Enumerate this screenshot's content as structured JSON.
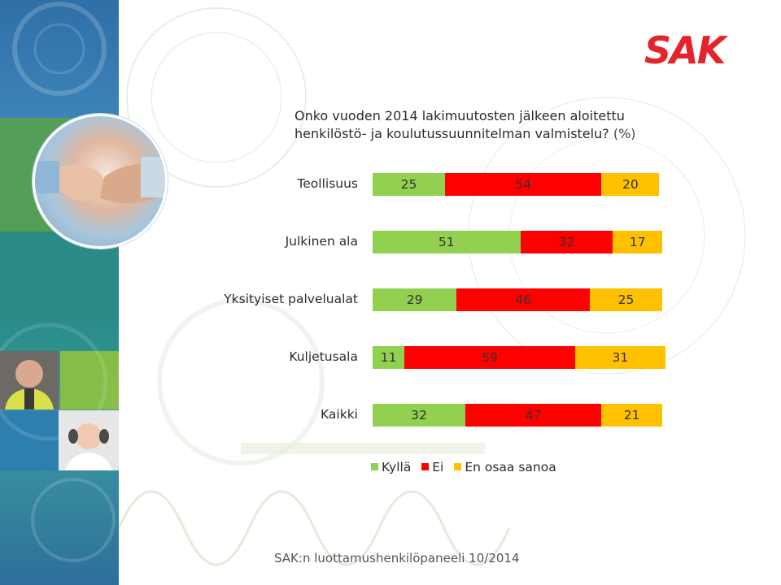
{
  "logo_text": "SAK",
  "chart_data": {
    "type": "bar",
    "orientation": "horizontal",
    "stacked": true,
    "title": "Onko vuoden 2014 lakimuutosten jälkeen aloitettu henkilöstö- ja koulutussuunnitelman valmistelu?",
    "title_line1": "Onko vuoden 2014 lakimuutosten jälkeen aloitettu",
    "title_line2": "henkilöstö- ja koulutussuunnitelman valmistelu?",
    "unit": "(%)",
    "categories": [
      "Teollisuus",
      "Julkinen ala",
      "Yksityiset palvelualat",
      "Kuljetusala",
      "Kaikki"
    ],
    "series": [
      {
        "name": "Kyllä",
        "color": "#92d050",
        "values": [
          25,
          51,
          29,
          11,
          32
        ]
      },
      {
        "name": "Ei",
        "color": "#ff0000",
        "values": [
          54,
          32,
          46,
          59,
          47
        ]
      },
      {
        "name": "En osaa sanoa",
        "color": "#ffc000",
        "values": [
          20,
          17,
          25,
          31,
          21
        ]
      }
    ],
    "xlim": [
      0,
      100
    ],
    "grid": false,
    "legend": "bottom"
  },
  "footer": "SAK:n luottamushenkilöpaneeli 10/2014"
}
